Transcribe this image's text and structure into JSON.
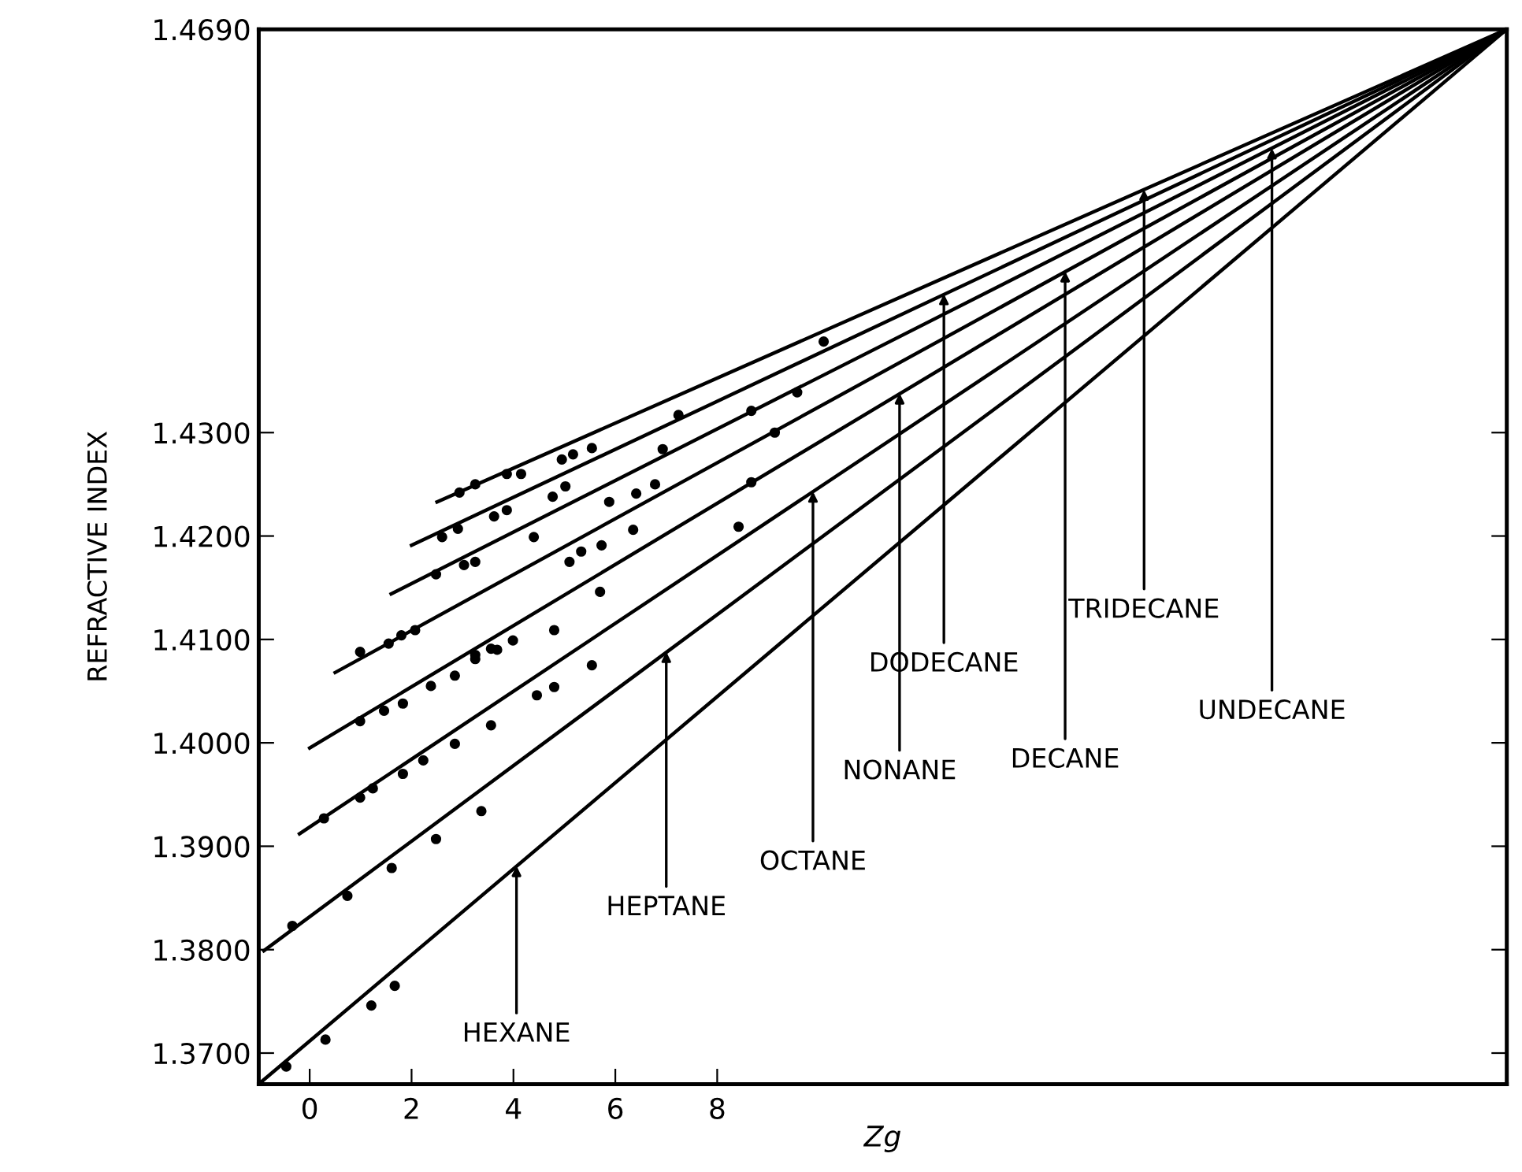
{
  "chart_data": {
    "type": "line",
    "xlabel": "Zg",
    "ylabel": "REFRACTIVE INDEX",
    "xlim": [
      -1.0,
      23.5
    ],
    "ylim": [
      1.367,
      1.469
    ],
    "xticks": [
      0,
      2,
      4,
      6,
      8
    ],
    "yticks": [
      {
        "value": 1.37,
        "label": "1.3700"
      },
      {
        "value": 1.38,
        "label": "1.3800"
      },
      {
        "value": 1.39,
        "label": "1.3900"
      },
      {
        "value": 1.4,
        "label": "1.4000"
      },
      {
        "value": 1.41,
        "label": "1.4100"
      },
      {
        "value": 1.42,
        "label": "1.4200"
      },
      {
        "value": 1.43,
        "label": "1.4300"
      },
      {
        "value": 1.469,
        "label": "1.4690"
      }
    ],
    "grid": false,
    "legend": false,
    "marker": "none",
    "line_style": "solid",
    "series": [
      {
        "type": "line",
        "color": "#000000",
        "x": [
          -1.0,
          23.5
        ],
        "values": [
          1.367,
          1.469
        ]
      },
      {
        "type": "line",
        "color": "#000000",
        "x": [
          -0.9,
          23.5
        ],
        "values": [
          1.3799,
          1.469
        ]
      },
      {
        "type": "line",
        "color": "#000000",
        "x": [
          -0.2,
          23.5
        ],
        "values": [
          1.3912,
          1.469
        ]
      },
      {
        "type": "line",
        "color": "#000000",
        "x": [
          0.0,
          23.5
        ],
        "values": [
          1.3995,
          1.469
        ]
      },
      {
        "type": "line",
        "color": "#000000",
        "x": [
          0.5,
          23.5
        ],
        "values": [
          1.4068,
          1.469
        ]
      },
      {
        "type": "line",
        "color": "#000000",
        "x": [
          1.6,
          23.5
        ],
        "values": [
          1.4144,
          1.469
        ]
      },
      {
        "type": "line",
        "color": "#000000",
        "x": [
          2.0,
          23.5
        ],
        "values": [
          1.4191,
          1.469
        ]
      },
      {
        "type": "line",
        "color": "#000000",
        "x": [
          2.5,
          23.5
        ],
        "values": [
          1.4233,
          1.469
        ]
      },
      {
        "type": "scatter",
        "color": "#000000",
        "marker": "circle",
        "x": [
          2.94,
          3.25,
          3.87,
          4.15,
          4.95,
          5.17,
          5.54,
          7.24,
          2.6,
          2.91,
          3.62,
          3.87,
          4.77,
          5.02,
          6.93,
          2.48,
          3.03,
          3.25,
          4.4,
          5.88,
          6.41,
          6.78,
          0.99,
          1.55,
          1.8,
          2.07,
          5.1,
          5.33,
          5.73,
          6.35,
          4.8,
          3.25,
          3.56,
          3.99,
          5.7,
          0.99,
          1.46,
          1.83,
          2.38,
          2.85,
          3.25,
          3.68,
          0.28,
          0.99,
          1.24,
          1.83,
          2.23,
          2.85,
          3.56,
          4.46,
          4.8,
          5.54,
          -0.34,
          0.74,
          1.61,
          2.48,
          3.37,
          -0.46,
          0.31,
          1.21,
          1.67,
          8.67,
          9.57,
          10.09,
          9.13,
          8.67,
          8.42
        ],
        "values": [
          1.4242,
          1.425,
          1.426,
          1.426,
          1.4274,
          1.4279,
          1.4285,
          1.4317,
          1.4199,
          1.4207,
          1.4219,
          1.4225,
          1.4238,
          1.4248,
          1.4284,
          1.4163,
          1.4172,
          1.4175,
          1.4199,
          1.4233,
          1.4241,
          1.425,
          1.4088,
          1.4096,
          1.4104,
          1.4109,
          1.4175,
          1.4185,
          1.4191,
          1.4206,
          1.4109,
          1.4085,
          1.4091,
          1.4099,
          1.4146,
          1.4021,
          1.4031,
          1.4038,
          1.4055,
          1.4065,
          1.4081,
          1.409,
          1.3927,
          1.3947,
          1.3956,
          1.397,
          1.3983,
          1.3999,
          1.4017,
          1.4046,
          1.4054,
          1.4075,
          1.3823,
          1.3852,
          1.3879,
          1.3907,
          1.3934,
          1.3687,
          1.3713,
          1.3746,
          1.3765,
          1.4321,
          1.4339,
          1.4388,
          1.43,
          1.4252,
          1.4209
        ]
      }
    ],
    "annotations": [
      {
        "text": "HEXANE",
        "x": 4.06,
        "y": 1.3881
      },
      {
        "text": "HEPTANE",
        "x": 7.0,
        "y": 1.4088
      },
      {
        "text": "OCTANE",
        "x": 9.88,
        "y": 1.4243
      },
      {
        "text": "NONANE",
        "x": 11.58,
        "y": 1.4338
      },
      {
        "text": "DODECANE",
        "x": 12.45,
        "y": 1.4434
      },
      {
        "text": "DECANE",
        "x": 14.83,
        "y": 1.4456
      },
      {
        "text": "TRIDECANE",
        "x": 16.38,
        "y": 1.4535
      },
      {
        "text": "UNDECANE",
        "x": 18.89,
        "y": 1.4575
      }
    ]
  }
}
